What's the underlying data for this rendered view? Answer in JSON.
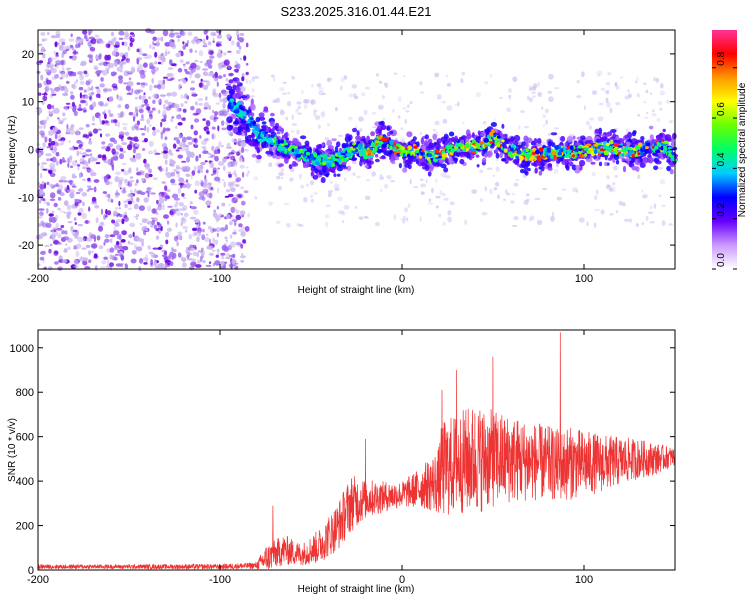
{
  "figure": {
    "title": "S233.2025.316.01.44.E21"
  },
  "colors": {
    "signal_line": "#ee3333",
    "axis": "#000000",
    "scatter_low": "#c8b4f0",
    "scatter_mid": "#6a00e0",
    "colormap": [
      "#ffffff",
      "#cc99ff",
      "#6600ff",
      "#0000ff",
      "#00ccff",
      "#00ff66",
      "#66ff00",
      "#ffff00",
      "#ff9900",
      "#ff0000",
      "#ff3399"
    ]
  },
  "chart_data": [
    {
      "type": "heatmap",
      "id": "spectrogram",
      "xlabel": "Height of straight line (km)",
      "ylabel": "Frequency (Hz)",
      "xlim": [
        -200,
        150
      ],
      "ylim": [
        -25,
        25
      ],
      "xticks": [
        -200,
        -100,
        0,
        100
      ],
      "yticks": [
        -20,
        -10,
        0,
        10,
        20
      ],
      "colorbar": {
        "label": "Normalized spectral amplitude",
        "range": [
          0,
          0.95
        ],
        "ticks": [
          "0.0",
          "0.2",
          "0.4",
          "0.6",
          "0.8"
        ],
        "tick_values": [
          0.0,
          0.2,
          0.4,
          0.6,
          0.8
        ]
      },
      "trace": {
        "description_note": "ridge frequency vs height",
        "x": [
          -95,
          -85,
          -78,
          -70,
          -62,
          -55,
          -48,
          -40,
          -32,
          -25,
          -18,
          -12,
          -5,
          0,
          8,
          15,
          25,
          35,
          45,
          50,
          58,
          65,
          75,
          85,
          95,
          105,
          115,
          125,
          135,
          145,
          150
        ],
        "y": [
          10,
          7,
          3,
          1.5,
          0,
          -1,
          -2,
          -2.5,
          -1.5,
          0.5,
          -1,
          2,
          0.5,
          -0.5,
          0,
          -1.5,
          -0.5,
          0.5,
          0.5,
          3,
          0,
          -1,
          -1,
          -0.5,
          -0.5,
          0,
          0.5,
          -0.5,
          0.5,
          0.5,
          -1.5
        ]
      },
      "noise_region": {
        "x_range": [
          -200,
          -90
        ],
        "note": "broadband noise, low amplitude"
      }
    },
    {
      "type": "line",
      "id": "snr",
      "xlabel": "Height of straight line (km)",
      "ylabel": "SNR (10 * v/v)",
      "xlim": [
        -200,
        150
      ],
      "ylim": [
        0,
        1080
      ],
      "xticks": [
        -200,
        -100,
        0,
        100
      ],
      "yticks": [
        0,
        200,
        400,
        600,
        800,
        1000
      ],
      "envelope": {
        "x": [
          -200,
          -150,
          -100,
          -80,
          -75,
          -65,
          -55,
          -45,
          -35,
          -28,
          -20,
          -10,
          0,
          10,
          20,
          22,
          30,
          40,
          50,
          60,
          70,
          80,
          88,
          90,
          100,
          110,
          120,
          130,
          140,
          150
        ],
        "mean": [
          15,
          15,
          15,
          20,
          50,
          90,
          70,
          110,
          200,
          300,
          320,
          330,
          340,
          370,
          400,
          450,
          480,
          500,
          500,
          500,
          490,
          480,
          470,
          480,
          480,
          480,
          490,
          500,
          500,
          510
        ],
        "amp": [
          10,
          10,
          12,
          15,
          60,
          70,
          50,
          80,
          110,
          130,
          90,
          70,
          60,
          90,
          150,
          220,
          230,
          250,
          220,
          200,
          180,
          170,
          160,
          170,
          150,
          130,
          110,
          90,
          70,
          40
        ]
      },
      "peaks": [
        {
          "x": -71,
          "y": 290
        },
        {
          "x": -20,
          "y": 590
        },
        {
          "x": 22,
          "y": 810
        },
        {
          "x": 30,
          "y": 900
        },
        {
          "x": 50,
          "y": 960
        },
        {
          "x": 87,
          "y": 1070
        }
      ]
    }
  ]
}
